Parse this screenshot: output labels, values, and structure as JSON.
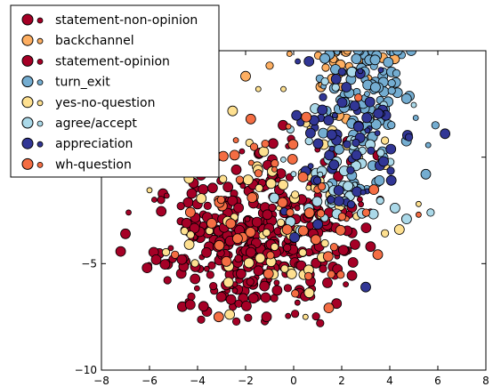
{
  "chart_data": {
    "type": "scatter",
    "xlim": [
      -8,
      8
    ],
    "ylim": [
      -10,
      5
    ],
    "xticks": [
      "−8",
      "−6",
      "−4",
      "−2",
      "0",
      "2",
      "4",
      "6",
      "8"
    ],
    "yticks": [
      "−10",
      "−5",
      "0"
    ],
    "grid": false,
    "legend_placement": "top-left",
    "series": [
      {
        "name": "statement-non-opinion",
        "color": "#a50026",
        "cluster": {
          "cx": -2.0,
          "cy": -4.2,
          "sx": 1.9,
          "sy": 1.7,
          "n": 260,
          "xmin": -7.2,
          "xmax": 2.8,
          "ymin": -7.8,
          "ymax": 1.6
        },
        "points": [
          [
            -7.0,
            -3.6
          ],
          [
            -6.1,
            -5.2
          ],
          [
            -5.8,
            -2.0
          ],
          [
            -4.0,
            1.0
          ],
          [
            -1.2,
            -7.7
          ],
          [
            2.4,
            -0.2
          ]
        ]
      },
      {
        "name": "backchannel",
        "color": "#fdae61",
        "cluster": {
          "cx": 2.2,
          "cy": 6.0,
          "sx": 0.9,
          "sy": 1.9,
          "n": 120,
          "xmin": -0.5,
          "xmax": 4.2,
          "ymin": 1.8,
          "ymax": 10.2
        },
        "points": [
          [
            -1.0,
            4.3
          ],
          [
            -2.0,
            3.8
          ],
          [
            4.2,
            6.5
          ]
        ]
      },
      {
        "name": "statement-opinion",
        "color": "#a50026",
        "cluster": {
          "cx": -0.5,
          "cy": -3.0,
          "sx": 1.8,
          "sy": 1.9,
          "n": 140,
          "xmin": -5.5,
          "xmax": 3.5,
          "ymin": -7.5,
          "ymax": 1.5
        },
        "points": [
          [
            3.6,
            -2.0
          ],
          [
            3.2,
            -4.2
          ]
        ]
      },
      {
        "name": "turn_exit",
        "color": "#74add1",
        "cluster": {
          "cx": 3.2,
          "cy": 4.0,
          "sx": 1.0,
          "sy": 2.6,
          "n": 150,
          "xmin": 0.6,
          "xmax": 5.8,
          "ymin": -1.5,
          "ymax": 10.2
        },
        "points": [
          [
            5.5,
            -0.8
          ],
          [
            5.9,
            1.5
          ]
        ]
      },
      {
        "name": "yes-no-question",
        "color": "#fee090",
        "cluster": {
          "cx": -1.0,
          "cy": -2.0,
          "sx": 2.2,
          "sy": 2.3,
          "n": 75,
          "xmin": -6.0,
          "xmax": 3.8,
          "ymin": -7.5,
          "ymax": 3.2
        },
        "points": [
          [
            4.4,
            -3.4
          ],
          [
            5.2,
            -2.2
          ]
        ]
      },
      {
        "name": "agree/accept",
        "color": "#abd9e9",
        "cluster": {
          "cx": 2.0,
          "cy": -0.5,
          "sx": 1.3,
          "sy": 1.7,
          "n": 60,
          "xmin": -1.8,
          "xmax": 5.0,
          "ymin": -4.5,
          "ymax": 4.0
        },
        "points": [
          [
            4.7,
            -2.9
          ],
          [
            5.7,
            -2.6
          ]
        ]
      },
      {
        "name": "appreciation",
        "color": "#313695",
        "cluster": {
          "cx": 2.0,
          "cy": 1.0,
          "sx": 1.3,
          "sy": 2.0,
          "n": 70,
          "xmin": -2.5,
          "xmax": 4.8,
          "ymin": -6.0,
          "ymax": 4.5
        },
        "points": [
          [
            3.0,
            -6.1
          ],
          [
            6.3,
            1.1
          ]
        ]
      },
      {
        "name": "wh-question",
        "color": "#f46d43",
        "cluster": {
          "cx": -0.8,
          "cy": -2.2,
          "sx": 2.2,
          "sy": 2.2,
          "n": 60,
          "xmin": -6.0,
          "xmax": 3.5,
          "ymin": -7.5,
          "ymax": 2.8
        },
        "points": [
          [
            5.2,
            -2.7
          ]
        ]
      }
    ]
  }
}
